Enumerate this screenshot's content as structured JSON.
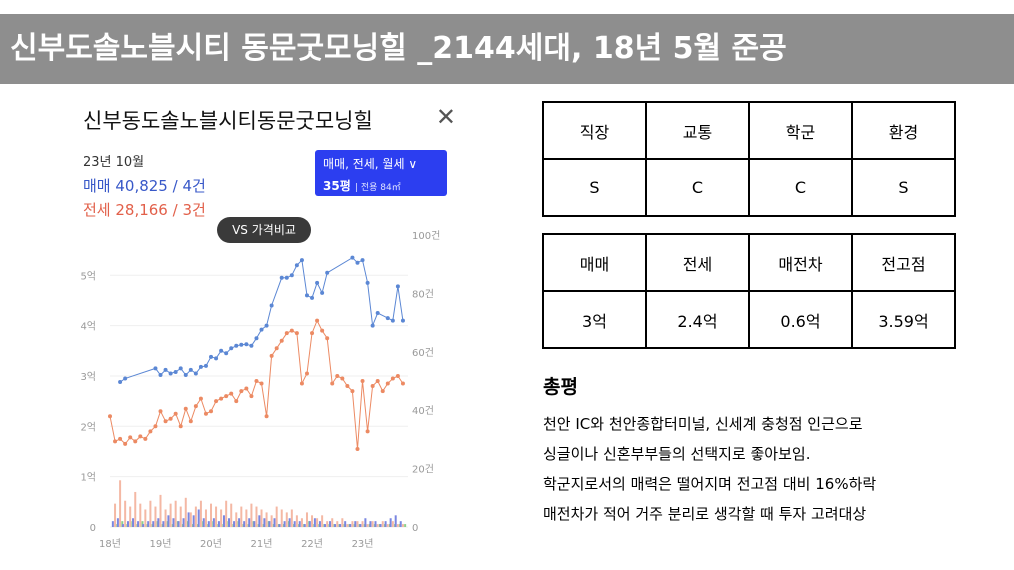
{
  "slide": {
    "title": "신부도솔노블시티 동문굿모닝힐 _2144세대, 18년 5월 준공"
  },
  "card": {
    "title": "신부동도솔노블시티동문굿모닝힐",
    "close_icon": "close-icon",
    "period": "23년 10월",
    "sale_summary": "매매 40,825 / 4건",
    "rent_summary": "전세 28,166 / 3건",
    "filter_label": "매매, 전세, 월세",
    "filter_icon": "chevron-down-icon",
    "size_label": "35평",
    "area_label": "| 전용 84㎡",
    "compare_button": "VS 가격비교"
  },
  "colors": {
    "sale_line": "#5b87d4",
    "rent_line": "#ec8a63",
    "pill": "#2c3ef0",
    "title_bar": "#8e8e8e"
  },
  "chart_data": {
    "type": "line",
    "title": "",
    "xlabel": "",
    "ylabel": "",
    "xlim": [
      2018,
      2023.9
    ],
    "ylim": [
      0,
      5.8
    ],
    "y2lim": [
      0,
      100
    ],
    "left_ticks": [
      {
        "value": 0,
        "label": "0"
      },
      {
        "value": 1,
        "label": "1억"
      },
      {
        "value": 2,
        "label": "2억"
      },
      {
        "value": 3,
        "label": "3억"
      },
      {
        "value": 4,
        "label": "4억"
      },
      {
        "value": 5,
        "label": "5억"
      }
    ],
    "right_ticks": [
      {
        "value": 0,
        "label": "0"
      },
      {
        "value": 20,
        "label": "20건"
      },
      {
        "value": 40,
        "label": "40건"
      },
      {
        "value": 60,
        "label": "60건"
      },
      {
        "value": 80,
        "label": "80건"
      },
      {
        "value": 100,
        "label": "100건"
      }
    ],
    "x_ticks": [
      {
        "value": 2018,
        "label": "18년"
      },
      {
        "value": 2019,
        "label": "19년"
      },
      {
        "value": 2020,
        "label": "20년"
      },
      {
        "value": 2021,
        "label": "21년"
      },
      {
        "value": 2022,
        "label": "22년"
      },
      {
        "value": 2023,
        "label": "23년"
      }
    ],
    "series": [
      {
        "key": "sale",
        "x": [
          2018.2,
          2018.3,
          2018.9,
          2019.0,
          2019.1,
          2019.2,
          2019.3,
          2019.4,
          2019.5,
          2019.6,
          2019.7,
          2019.8,
          2019.9,
          2020.0,
          2020.1,
          2020.2,
          2020.3,
          2020.4,
          2020.5,
          2020.6,
          2020.7,
          2020.8,
          2020.9,
          2021.0,
          2021.1,
          2021.2,
          2021.4,
          2021.5,
          2021.6,
          2021.7,
          2021.8,
          2021.9,
          2022.0,
          2022.1,
          2022.2,
          2022.3,
          2022.8,
          2022.9,
          2023.0,
          2023.1,
          2023.2,
          2023.3,
          2023.5,
          2023.6,
          2023.7,
          2023.8
        ],
        "values": [
          2.88,
          2.95,
          3.15,
          3.02,
          3.12,
          3.05,
          3.08,
          3.15,
          3.02,
          3.12,
          3.05,
          3.18,
          3.2,
          3.38,
          3.35,
          3.5,
          3.45,
          3.55,
          3.6,
          3.62,
          3.63,
          3.6,
          3.75,
          3.92,
          4.0,
          4.4,
          4.95,
          4.95,
          5.0,
          5.2,
          5.3,
          4.6,
          4.55,
          4.85,
          4.65,
          5.05,
          5.35,
          5.25,
          5.3,
          4.85,
          4.0,
          4.25,
          4.15,
          4.1,
          4.78,
          4.1
        ]
      },
      {
        "key": "rent",
        "x": [
          2018.0,
          2018.1,
          2018.2,
          2018.3,
          2018.4,
          2018.5,
          2018.6,
          2018.7,
          2018.8,
          2018.9,
          2019.0,
          2019.1,
          2019.2,
          2019.3,
          2019.4,
          2019.5,
          2019.6,
          2019.7,
          2019.8,
          2019.9,
          2020.0,
          2020.1,
          2020.2,
          2020.3,
          2020.4,
          2020.5,
          2020.6,
          2020.7,
          2020.8,
          2020.9,
          2021.0,
          2021.1,
          2021.2,
          2021.3,
          2021.4,
          2021.5,
          2021.6,
          2021.7,
          2021.8,
          2021.9,
          2022.0,
          2022.1,
          2022.2,
          2022.3,
          2022.4,
          2022.5,
          2022.6,
          2022.7,
          2022.8,
          2022.9,
          2023.0,
          2023.1,
          2023.2,
          2023.3,
          2023.4,
          2023.5,
          2023.6,
          2023.7,
          2023.8
        ],
        "values": [
          2.2,
          1.7,
          1.75,
          1.65,
          1.78,
          1.7,
          1.8,
          1.75,
          1.9,
          2.0,
          2.3,
          2.1,
          2.15,
          2.25,
          2.0,
          2.35,
          2.1,
          2.4,
          2.55,
          2.25,
          2.3,
          2.5,
          2.55,
          2.6,
          2.65,
          2.5,
          2.7,
          2.75,
          2.6,
          2.9,
          2.85,
          2.2,
          3.4,
          3.55,
          3.7,
          3.85,
          3.9,
          3.85,
          2.85,
          3.05,
          3.85,
          4.1,
          3.9,
          3.75,
          2.85,
          3.0,
          2.95,
          2.8,
          2.7,
          1.55,
          2.9,
          1.9,
          2.8,
          2.9,
          2.7,
          2.85,
          2.95,
          3.0,
          2.85
        ]
      }
    ],
    "volume": {
      "x": [
        2018.1,
        2018.2,
        2018.3,
        2018.4,
        2018.5,
        2018.6,
        2018.7,
        2018.8,
        2018.9,
        2019.0,
        2019.1,
        2019.2,
        2019.3,
        2019.4,
        2019.5,
        2019.6,
        2019.7,
        2019.8,
        2019.9,
        2020.0,
        2020.1,
        2020.2,
        2020.3,
        2020.4,
        2020.5,
        2020.6,
        2020.7,
        2020.8,
        2020.9,
        2021.0,
        2021.1,
        2021.2,
        2021.3,
        2021.4,
        2021.5,
        2021.6,
        2021.7,
        2021.8,
        2021.9,
        2022.0,
        2022.1,
        2022.2,
        2022.3,
        2022.4,
        2022.5,
        2022.6,
        2022.7,
        2022.8,
        2022.9,
        2023.0,
        2023.1,
        2023.2,
        2023.3,
        2023.4,
        2023.5,
        2023.6,
        2023.7,
        2023.8
      ],
      "sale": [
        2,
        3,
        1,
        2,
        3,
        2,
        1,
        2,
        2,
        3,
        2,
        4,
        3,
        2,
        3,
        5,
        4,
        6,
        3,
        2,
        3,
        2,
        4,
        3,
        2,
        3,
        2,
        3,
        2,
        4,
        3,
        2,
        3,
        1,
        2,
        3,
        2,
        2,
        1,
        2,
        3,
        2,
        1,
        2,
        1,
        1,
        2,
        1,
        2,
        1,
        3,
        2,
        2,
        1,
        2,
        3,
        4,
        2
      ],
      "rent": [
        8,
        16,
        9,
        7,
        12,
        8,
        6,
        9,
        7,
        11,
        6,
        8,
        9,
        7,
        10,
        5,
        7,
        9,
        6,
        8,
        7,
        6,
        9,
        8,
        5,
        7,
        6,
        8,
        7,
        6,
        5,
        4,
        7,
        6,
        5,
        6,
        4,
        3,
        5,
        4,
        3,
        4,
        2,
        3,
        2,
        3,
        1,
        2,
        2,
        2,
        1,
        2,
        1,
        2,
        1,
        2,
        1,
        1
      ],
      "monthly": [
        1,
        2,
        1,
        2,
        1,
        2,
        1,
        1,
        2,
        1,
        2,
        1,
        2,
        1,
        2,
        1,
        1,
        2,
        1,
        2,
        1,
        1,
        2,
        1,
        2,
        1,
        1,
        2,
        1,
        1,
        2,
        1,
        1,
        1,
        2,
        1,
        1,
        1,
        2,
        1,
        1,
        1,
        1,
        1,
        1,
        1,
        1,
        1,
        1,
        1,
        1,
        1,
        1,
        1,
        1,
        1,
        1,
        1
      ]
    }
  },
  "score_table": {
    "headers": [
      "직장",
      "교통",
      "학군",
      "환경"
    ],
    "values": [
      "S",
      "C",
      "C",
      "S"
    ]
  },
  "price_table": {
    "headers": [
      "매매",
      "전세",
      "매전차",
      "전고점"
    ],
    "values": [
      "3억",
      "2.4억",
      "0.6억",
      "3.59억"
    ]
  },
  "summary": {
    "title": "총평",
    "lines": [
      "천안 IC와 천안종합터미널, 신세계 충청점 인근으로",
      "싱글이나 신혼부부들의 선택지로 좋아보임.",
      "학군지로서의 매력은 떨어지며 전고점 대비 16%하락",
      "매전차가 적어 거주 분리로 생각할 때 투자 고려대상"
    ]
  }
}
